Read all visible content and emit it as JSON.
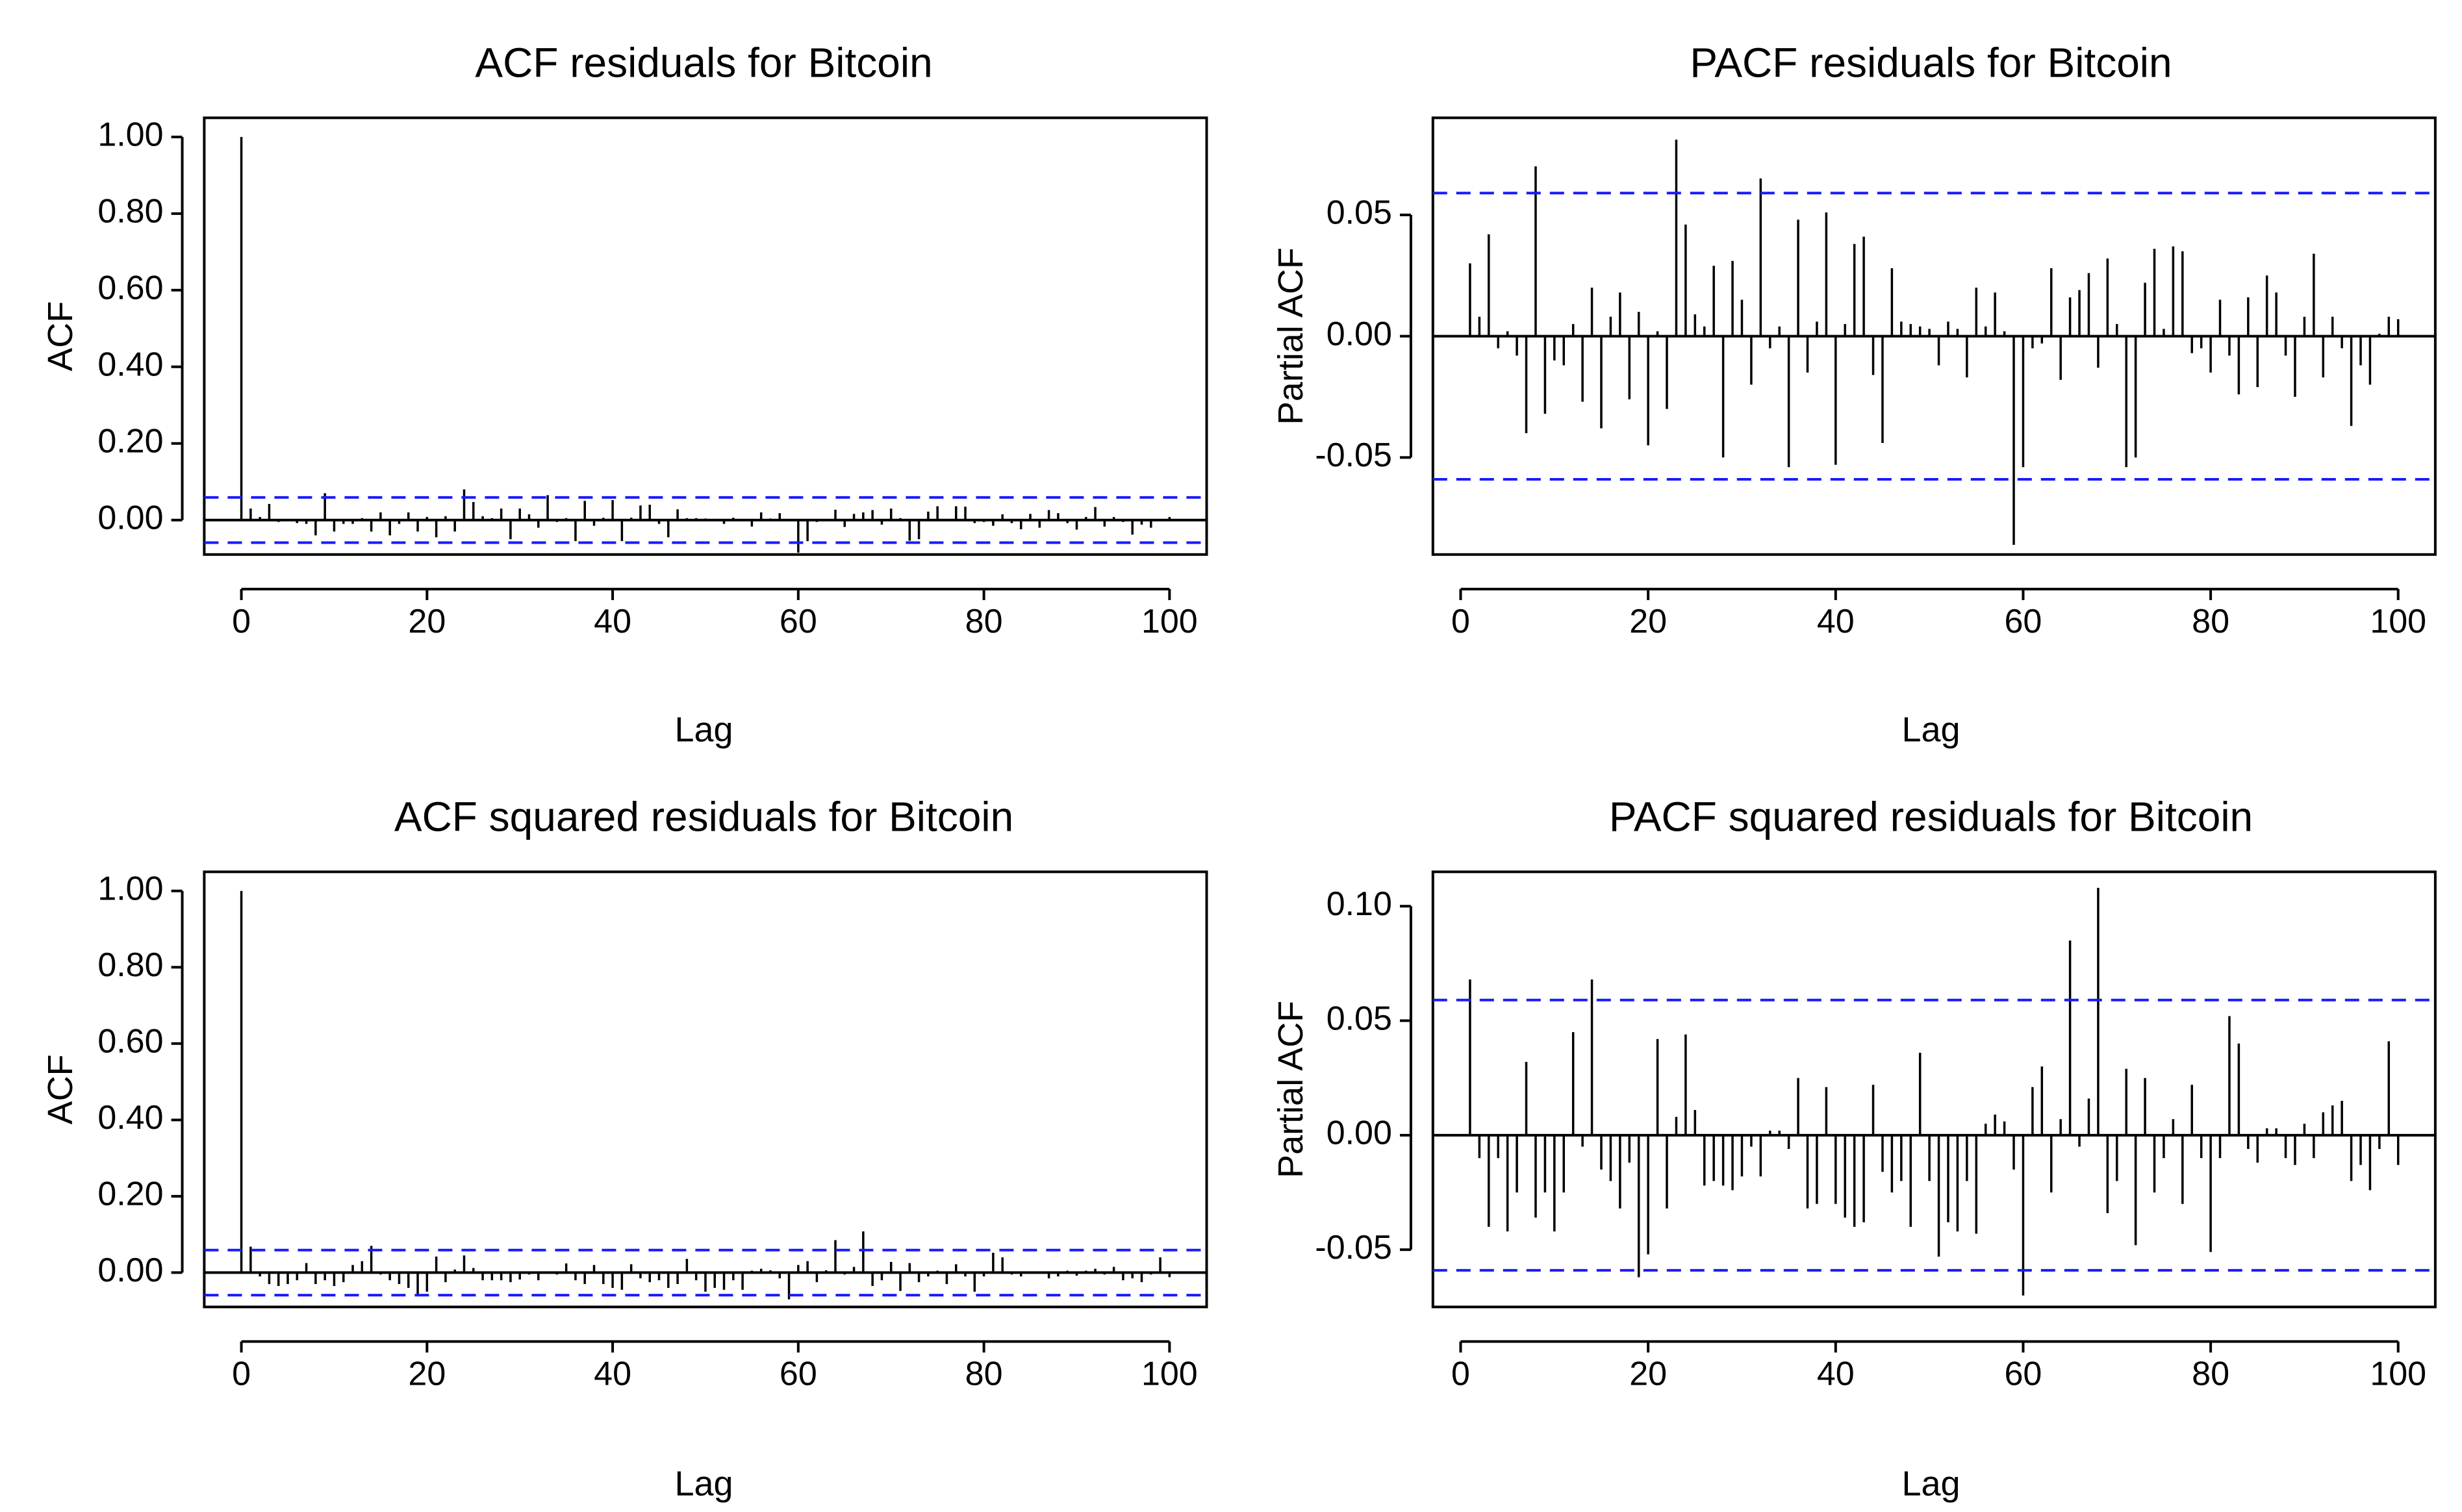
{
  "chart_data": [
    {
      "type": "bar",
      "kind": "acf",
      "title": "ACF residuals for Bitcoin",
      "xlabel": "Lag",
      "ylabel": "ACF",
      "xlim": [
        0,
        100
      ],
      "ylim": [
        -0.09,
        1.05
      ],
      "xticks": [
        0,
        20,
        40,
        60,
        80,
        100
      ],
      "xtick_labels": [
        "0",
        "20",
        "40",
        "60",
        "80",
        "100"
      ],
      "yticks": [
        0,
        0.2,
        0.4,
        0.6,
        0.8,
        1.0
      ],
      "ytick_labels": [
        "0.00",
        "0.20",
        "0.40",
        "0.60",
        "0.80",
        "1.00"
      ],
      "ci": 0.059,
      "lag_start": 0,
      "values": [
        1.0,
        0.03,
        0.008,
        0.042,
        -0.005,
        0.002,
        -0.008,
        -0.01,
        -0.04,
        0.07,
        -0.03,
        -0.01,
        -0.01,
        0.005,
        -0.03,
        0.02,
        -0.04,
        -0.01,
        0.02,
        -0.03,
        0.008,
        -0.045,
        0.01,
        -0.03,
        0.08,
        0.047,
        0.01,
        0.005,
        0.03,
        -0.05,
        0.03,
        0.015,
        -0.02,
        0.065,
        -0.005,
        0.005,
        -0.055,
        0.05,
        -0.015,
        0.006,
        0.052,
        -0.055,
        0.006,
        0.038,
        0.04,
        -0.01,
        -0.045,
        0.028,
        0.005,
        0.005,
        0.004,
        0.003,
        -0.01,
        0.006,
        0.002,
        -0.017,
        0.02,
        0.004,
        0.018,
        0.001,
        -0.085,
        -0.055,
        -0.005,
        -0.003,
        0.027,
        -0.018,
        0.016,
        0.02,
        0.026,
        -0.012,
        0.03,
        0.005,
        -0.054,
        -0.05,
        0.022,
        0.036,
        0.003,
        0.036,
        0.035,
        -0.008,
        -0.005,
        -0.015,
        0.015,
        -0.008,
        -0.024,
        0.016,
        -0.02,
        0.026,
        0.018,
        -0.008,
        -0.025,
        0.008,
        0.034,
        -0.017,
        0.008,
        -0.005,
        -0.038,
        -0.012,
        -0.02,
        0.001,
        0.008
      ]
    },
    {
      "type": "bar",
      "kind": "pacf",
      "title": "PACF residuals for Bitcoin",
      "xlabel": "Lag",
      "ylabel": "Partial ACF",
      "xlim": [
        1,
        100
      ],
      "ylim": [
        -0.09,
        0.09
      ],
      "xticks": [
        0,
        20,
        40,
        60,
        80,
        100
      ],
      "xtick_labels": [
        "0",
        "20",
        "40",
        "60",
        "80",
        "100"
      ],
      "yticks": [
        -0.05,
        0,
        0.05
      ],
      "ytick_labels": [
        "-0.05",
        "0.00",
        "0.05"
      ],
      "ci": 0.059,
      "lag_start": 1,
      "values": [
        0.03,
        0.008,
        0.042,
        -0.005,
        0.002,
        -0.008,
        -0.04,
        0.07,
        -0.032,
        -0.01,
        -0.012,
        0.005,
        -0.027,
        0.02,
        -0.038,
        0.008,
        0.018,
        -0.026,
        0.01,
        -0.045,
        0.002,
        -0.03,
        0.081,
        0.046,
        0.009,
        0.004,
        0.029,
        -0.05,
        0.031,
        0.015,
        -0.02,
        0.065,
        -0.005,
        0.004,
        -0.054,
        0.048,
        -0.015,
        0.006,
        0.051,
        -0.053,
        0.005,
        0.038,
        0.041,
        -0.016,
        -0.044,
        0.028,
        0.006,
        0.005,
        0.004,
        0.003,
        -0.012,
        0.006,
        0.003,
        -0.017,
        0.02,
        0.004,
        0.018,
        0.002,
        -0.086,
        -0.054,
        -0.005,
        -0.003,
        0.028,
        -0.018,
        0.016,
        0.019,
        0.026,
        -0.013,
        0.032,
        0.005,
        -0.054,
        -0.05,
        0.022,
        0.036,
        0.003,
        0.037,
        0.035,
        -0.007,
        -0.005,
        -0.015,
        0.015,
        -0.008,
        -0.024,
        0.016,
        -0.021,
        0.025,
        0.018,
        -0.008,
        -0.025,
        0.008,
        0.034,
        -0.017,
        0.008,
        -0.005,
        -0.037,
        -0.012,
        -0.02,
        0.001,
        0.008,
        0.007
      ]
    },
    {
      "type": "bar",
      "kind": "acf",
      "title": "ACF squared residuals for Bitcoin",
      "xlabel": "Lag",
      "ylabel": "ACF",
      "xlim": [
        0,
        100
      ],
      "ylim": [
        -0.09,
        1.05
      ],
      "xticks": [
        0,
        20,
        40,
        60,
        80,
        100
      ],
      "xtick_labels": [
        "0",
        "20",
        "40",
        "60",
        "80",
        "100"
      ],
      "yticks": [
        0,
        0.2,
        0.4,
        0.6,
        0.8,
        1.0
      ],
      "ytick_labels": [
        "0.00",
        "0.20",
        "0.40",
        "0.60",
        "0.80",
        "1.00"
      ],
      "ci": 0.059,
      "lag_start": 0,
      "values": [
        1.0,
        0.068,
        -0.01,
        -0.03,
        -0.035,
        -0.03,
        -0.02,
        0.025,
        -0.03,
        -0.02,
        -0.035,
        -0.025,
        0.02,
        0.03,
        0.07,
        -0.005,
        -0.02,
        -0.03,
        -0.04,
        -0.06,
        -0.05,
        0.042,
        -0.025,
        0.008,
        0.045,
        0.012,
        -0.02,
        -0.02,
        -0.02,
        -0.025,
        -0.018,
        -0.005,
        -0.02,
        0.003,
        -0.005,
        0.024,
        -0.02,
        -0.03,
        0.02,
        -0.03,
        -0.04,
        -0.045,
        0.022,
        -0.015,
        -0.025,
        -0.02,
        -0.04,
        -0.03,
        0.036,
        -0.02,
        -0.05,
        -0.04,
        -0.045,
        -0.02,
        -0.045,
        0.005,
        0.01,
        0.006,
        -0.015,
        -0.07,
        0.02,
        0.03,
        -0.025,
        0.006,
        0.085,
        -0.005,
        0.015,
        0.108,
        -0.035,
        -0.02,
        0.028,
        -0.048,
        0.025,
        -0.025,
        -0.01,
        0.005,
        -0.03,
        0.022,
        -0.01,
        -0.05,
        -0.01,
        0.052,
        0.04,
        -0.005,
        -0.01,
        0.003,
        0.002,
        -0.015,
        -0.01,
        0.005,
        -0.008,
        0.005,
        0.01,
        -0.005,
        0.015,
        -0.02,
        -0.015,
        -0.025,
        -0.005,
        0.04,
        -0.012
      ]
    },
    {
      "type": "bar",
      "kind": "pacf",
      "title": "PACF squared residuals for Bitcoin",
      "xlabel": "Lag",
      "ylabel": "Partial ACF",
      "xlim": [
        1,
        100
      ],
      "ylim": [
        -0.075,
        0.115
      ],
      "xticks": [
        0,
        20,
        40,
        60,
        80,
        100
      ],
      "xtick_labels": [
        "0",
        "20",
        "40",
        "60",
        "80",
        "100"
      ],
      "yticks": [
        -0.05,
        0,
        0.05,
        0.1
      ],
      "ytick_labels": [
        "-0.05",
        "0.00",
        "0.05",
        "0.10"
      ],
      "ci": 0.059,
      "lag_start": 1,
      "values": [
        0.068,
        -0.01,
        -0.04,
        -0.01,
        -0.042,
        -0.025,
        0.032,
        -0.036,
        -0.025,
        -0.042,
        -0.025,
        0.045,
        -0.005,
        0.068,
        -0.015,
        -0.02,
        -0.032,
        -0.012,
        -0.062,
        -0.052,
        0.042,
        -0.032,
        0.008,
        0.044,
        0.011,
        -0.022,
        -0.02,
        -0.022,
        -0.024,
        -0.018,
        -0.005,
        -0.018,
        0.002,
        0.002,
        -0.006,
        0.025,
        -0.032,
        -0.03,
        0.021,
        -0.03,
        -0.036,
        -0.04,
        -0.038,
        0.022,
        -0.016,
        -0.025,
        -0.02,
        -0.04,
        0.036,
        -0.02,
        -0.053,
        -0.038,
        -0.042,
        -0.02,
        -0.043,
        0.005,
        0.009,
        0.006,
        -0.015,
        -0.07,
        0.021,
        0.03,
        -0.025,
        0.007,
        0.085,
        -0.005,
        0.016,
        0.108,
        -0.034,
        -0.02,
        0.029,
        -0.048,
        0.025,
        -0.025,
        -0.01,
        0.007,
        -0.03,
        0.022,
        -0.01,
        -0.051,
        -0.01,
        0.052,
        0.04,
        -0.006,
        -0.012,
        0.003,
        0.003,
        -0.01,
        -0.013,
        0.005,
        -0.01,
        0.01,
        0.013,
        0.015,
        -0.02,
        -0.013,
        -0.024,
        -0.006,
        0.041,
        -0.013
      ]
    }
  ]
}
